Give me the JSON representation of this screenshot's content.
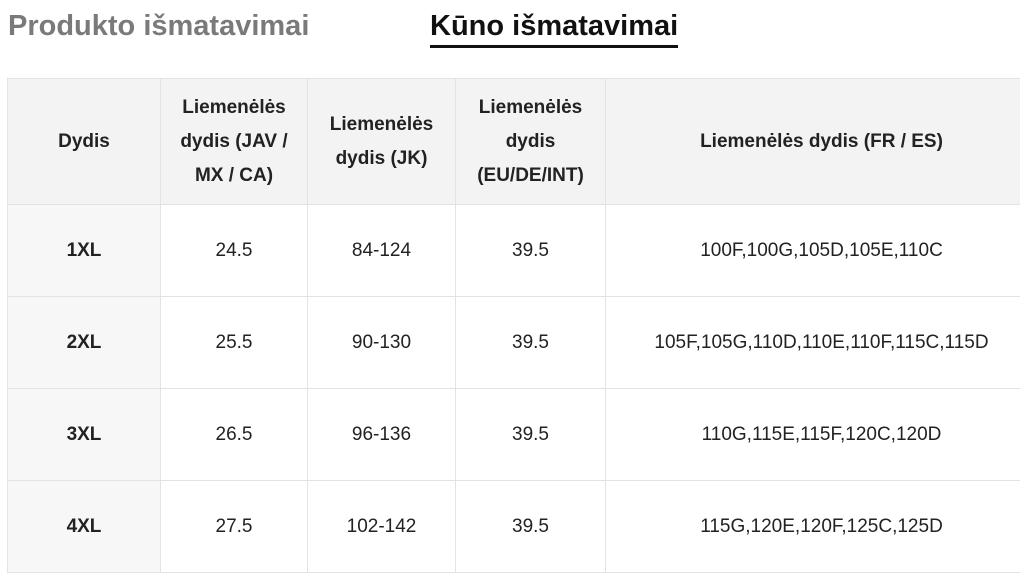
{
  "tabs": [
    "Produkto išmatavimai",
    "Kūno išmatavimai"
  ],
  "table": {
    "columns": [
      "Dydis",
      "Liemenėlės dydis (JAV / MX / CA)",
      "Liemenėlės dydis (JK)",
      "Liemenėlės dydis (EU/DE/INT)",
      "Liemenėlės dydis (FR / ES)"
    ],
    "rows": [
      [
        "1XL",
        "24.5",
        "84-124",
        "39.5",
        "100F,100G,105D,105E,110C"
      ],
      [
        "2XL",
        "25.5",
        "90-130",
        "39.5",
        "105F,105G,110D,110E,110F,115C,115D"
      ],
      [
        "3XL",
        "26.5",
        "96-136",
        "39.5",
        "110G,115E,115F,120C,120D"
      ],
      [
        "4XL",
        "27.5",
        "102-142",
        "39.5",
        "115G,120E,120F,125C,125D"
      ]
    ]
  }
}
